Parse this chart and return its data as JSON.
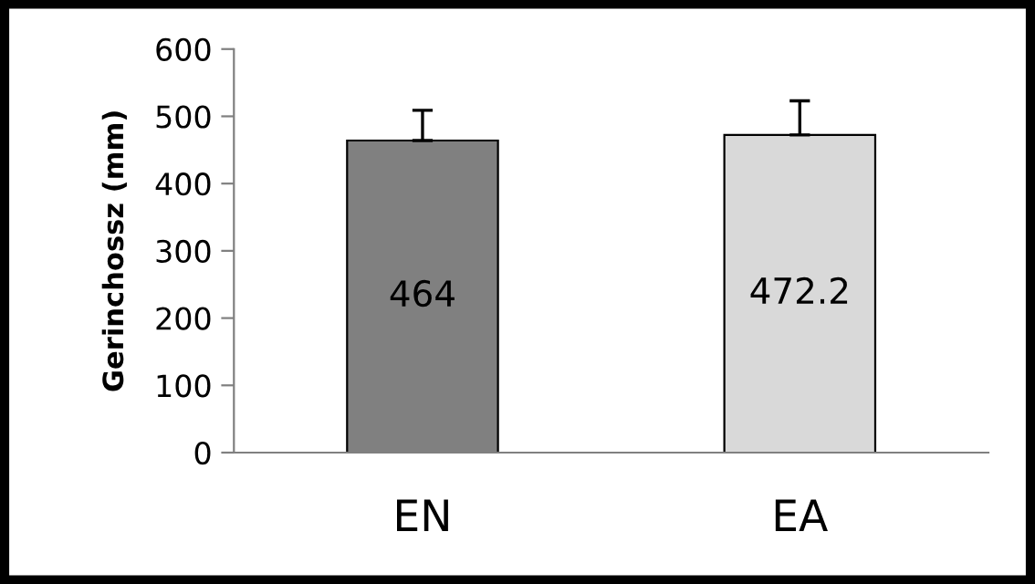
{
  "chart_data": {
    "type": "bar",
    "ylabel": "Gerinchossz (mm)",
    "categories": [
      "EN",
      "EA"
    ],
    "values": [
      464,
      472.2
    ],
    "colors": [
      "#808080",
      "#d9d9d9"
    ],
    "errors": [
      [
        464,
        509
      ],
      [
        472.2,
        523
      ]
    ],
    "data_labels": true,
    "ylim": [
      0,
      600
    ],
    "yticks": [
      0,
      100,
      200,
      300,
      400,
      500,
      600
    ],
    "grid": false
  }
}
